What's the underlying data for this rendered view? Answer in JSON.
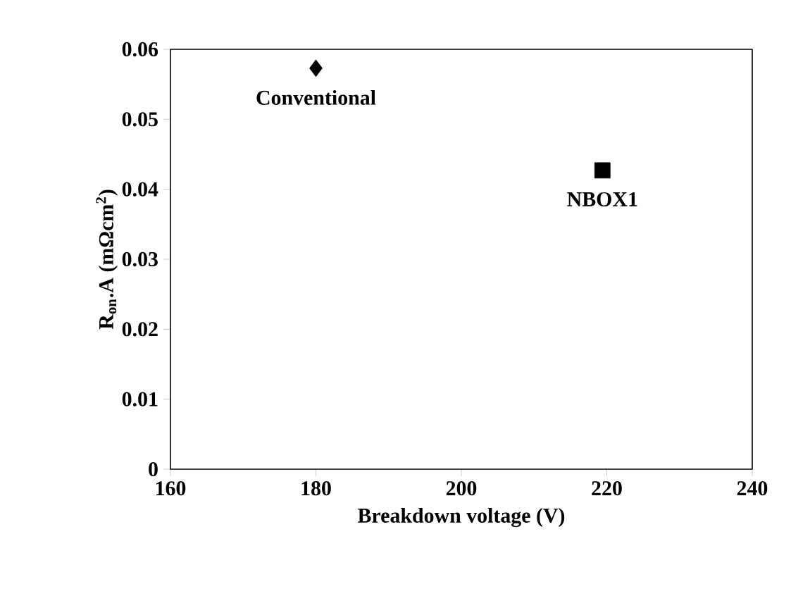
{
  "chart_data": {
    "type": "scatter",
    "xlabel": "Breakdown voltage (V)",
    "ylabel": "R$_{on}$.A (mΩcm$^{2}$)",
    "series": [
      {
        "name": "Conventional",
        "color": "#000000",
        "marker": "diamond",
        "x": [
          180
        ],
        "values": [
          0.0573
        ]
      },
      {
        "name": "NBOX1",
        "color": "#000000",
        "marker": "square",
        "x": [
          219.4
        ],
        "values": [
          0.0427
        ]
      }
    ],
    "xlim": [
      160,
      240
    ],
    "xticks": [
      160,
      180,
      200,
      220,
      240
    ],
    "ylim": [
      0,
      0.06
    ],
    "yticks": [
      0,
      0.01,
      0.02,
      0.03,
      0.04,
      0.05,
      0.06
    ],
    "grid": false
  }
}
